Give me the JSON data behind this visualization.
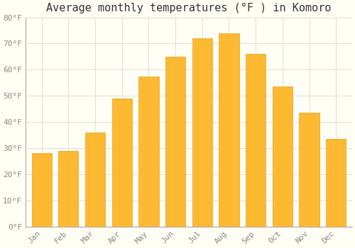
{
  "title": "Average monthly temperatures (°F ) in Komoro",
  "months": [
    "Jan",
    "Feb",
    "Mar",
    "Apr",
    "May",
    "Jun",
    "Jul",
    "Aug",
    "Sep",
    "Oct",
    "Nov",
    "Dec"
  ],
  "values": [
    28,
    29,
    36,
    49,
    57.5,
    65,
    72,
    74,
    66,
    53.5,
    43.5,
    33.5
  ],
  "bar_color": "#FDB931",
  "bar_edge_color": "#E8A020",
  "background_color": "#FFFFF5",
  "grid_color": "#D8D8D8",
  "ylim": [
    0,
    80
  ],
  "yticks": [
    0,
    10,
    20,
    30,
    40,
    50,
    60,
    70,
    80
  ],
  "title_fontsize": 11,
  "tick_fontsize": 8,
  "tick_font_color": "#888888"
}
